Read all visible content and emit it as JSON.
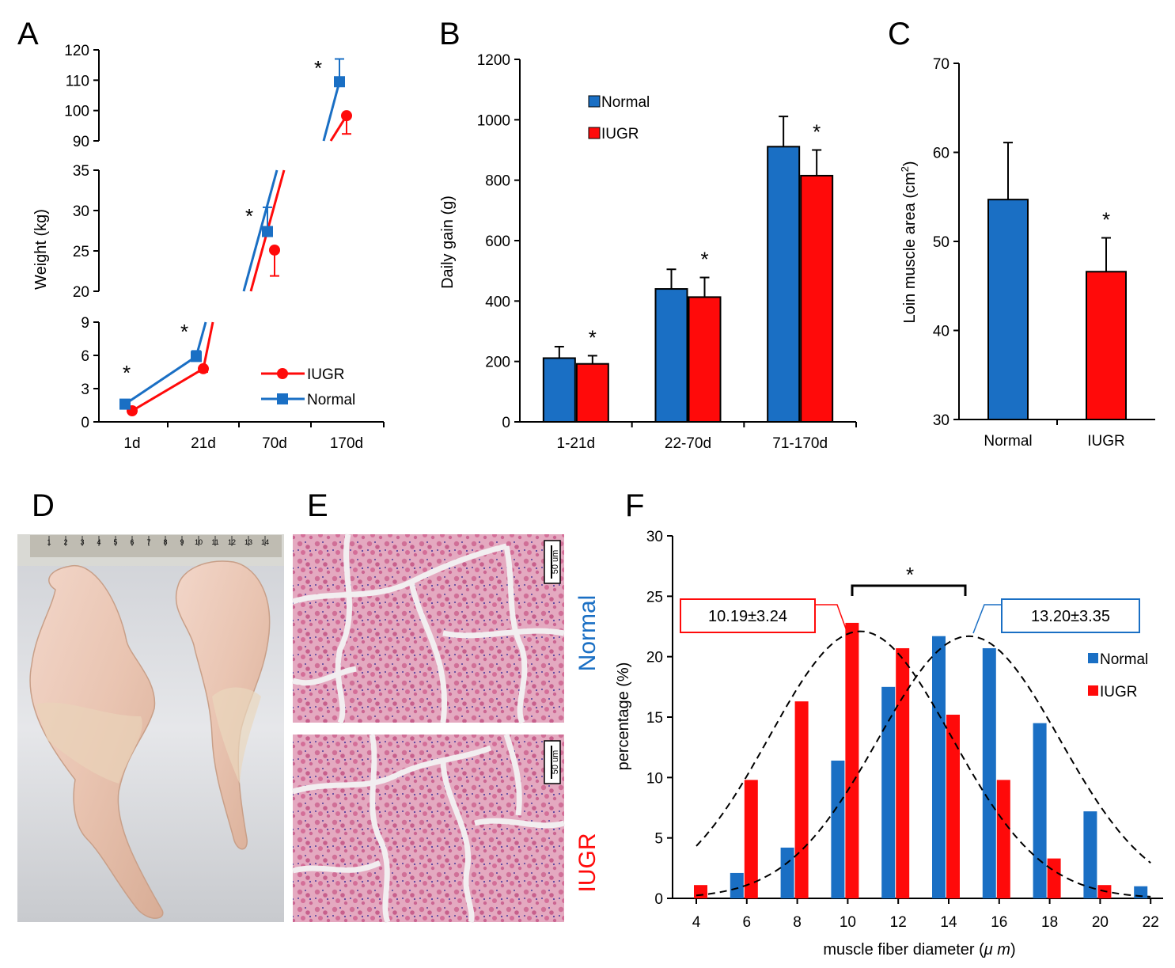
{
  "panel_letters": [
    "A",
    "B",
    "C",
    "D",
    "E",
    "F"
  ],
  "colors": {
    "normal": "#1a6fc4",
    "iugr": "#ff0a0a",
    "axis": "#000000"
  },
  "chart_data": [
    {
      "panel": "A",
      "type": "line",
      "ylabel": "Weight (kg)",
      "categories": [
        "1d",
        "21d",
        "70d",
        "170d"
      ],
      "segments": [
        {
          "ylim": [
            0,
            9
          ],
          "ticks": [
            "0",
            "3",
            "6",
            "9"
          ]
        },
        {
          "ylim": [
            20,
            35
          ],
          "ticks": [
            "20",
            "25",
            "30",
            "35"
          ]
        },
        {
          "ylim": [
            90,
            120
          ],
          "ticks": [
            "90",
            "100",
            "110",
            "120"
          ]
        }
      ],
      "series": [
        {
          "name": "IUGR",
          "values": [
            1.0,
            4.8,
            25.1,
            98.3
          ],
          "errors": [
            0.2,
            0.3,
            3.2,
            6.0
          ]
        },
        {
          "name": "Normal",
          "values": [
            1.6,
            5.9,
            27.4,
            109.5
          ],
          "errors": [
            0.2,
            0.5,
            3.0,
            7.5
          ]
        }
      ],
      "annotations": [
        "*",
        "*",
        "*",
        "*"
      ]
    },
    {
      "panel": "B",
      "type": "bar",
      "ylabel": "Daily gain (g)",
      "categories": [
        "1-21d",
        "22-70d",
        "71-170d"
      ],
      "ylim": [
        0,
        1200
      ],
      "yticks": [
        "0",
        "200",
        "400",
        "600",
        "800",
        "1000",
        "1200"
      ],
      "series": [
        {
          "name": "Normal",
          "values": [
            211,
            440,
            911
          ],
          "errors": [
            38,
            65,
            100
          ]
        },
        {
          "name": "IUGR",
          "values": [
            192,
            413,
            815
          ],
          "errors": [
            27,
            65,
            85
          ]
        }
      ],
      "annotations": [
        "*",
        "*",
        "*"
      ]
    },
    {
      "panel": "C",
      "type": "bar",
      "ylabel": "Loin muscle area (cm",
      "ylabel_sup": "2",
      "ylabel_end": ")",
      "categories": [
        "Normal",
        "IUGR"
      ],
      "ylim": [
        30,
        70
      ],
      "yticks": [
        "30",
        "40",
        "50",
        "60",
        "70"
      ],
      "values": [
        54.7,
        46.6
      ],
      "errors": [
        6.4,
        3.8
      ],
      "annotations": [
        "*"
      ]
    },
    {
      "panel": "F",
      "type": "bar",
      "xlabel": "muscle fiber diameter (",
      "xlabel_unit": "μ m",
      "xlabel_end": ")",
      "ylabel": "percentage (%)",
      "categories": [
        "4",
        "6",
        "8",
        "10",
        "12",
        "14",
        "16",
        "18",
        "20",
        "22"
      ],
      "ylim": [
        0,
        30
      ],
      "yticks": [
        "0",
        "5",
        "10",
        "15",
        "20",
        "25",
        "30"
      ],
      "series": [
        {
          "name": "Normal",
          "values": [
            0,
            2.1,
            4.2,
            11.4,
            17.5,
            21.7,
            20.7,
            14.5,
            7.2,
            1.0
          ]
        },
        {
          "name": "IUGR",
          "values": [
            1.1,
            9.8,
            16.3,
            22.8,
            20.7,
            15.2,
            9.8,
            3.3,
            1.1,
            0
          ]
        }
      ],
      "fits": [
        {
          "name": "IUGR",
          "mean": 10.5,
          "peak": 22.1
        },
        {
          "name": "Normal",
          "mean": 14.8,
          "peak": 21.7
        }
      ],
      "boxes": {
        "iugr": "10.19±3.24",
        "normal": "13.20±3.35"
      },
      "annotations": [
        "*"
      ]
    }
  ],
  "panelE": {
    "normal_label": "Normal",
    "iugr_label": "IUGR",
    "scale_label": "50 um"
  },
  "panelD": {
    "ruler_marks": [
      "1",
      "2",
      "3",
      "4",
      "5",
      "6",
      "7",
      "8",
      "9",
      "10",
      "11",
      "12",
      "13",
      "14"
    ]
  }
}
